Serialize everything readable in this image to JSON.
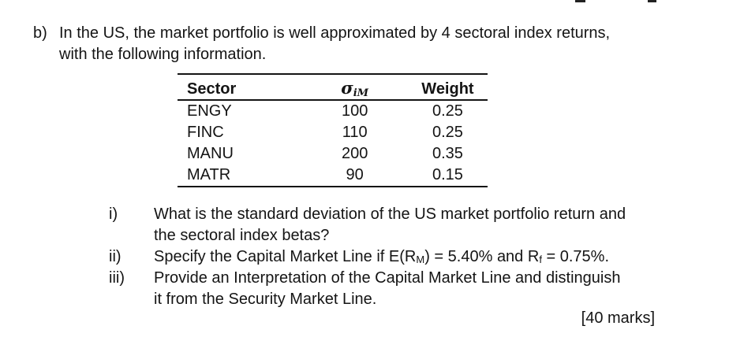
{
  "colors": {
    "background": "#ffffff",
    "text": "#141414",
    "table_rule": "#141414"
  },
  "question_b": {
    "label": "b)",
    "line1": "In the US, the market portfolio is well approximated by 4 sectoral index returns,",
    "line2": "with the following information."
  },
  "table": {
    "headers": {
      "sector": "Sector",
      "sigma_symbol": "σ",
      "sigma_subscript": "iM",
      "weight": "Weight"
    },
    "rows": [
      {
        "sector": "ENGY",
        "sigma_im": "100",
        "weight": "0.25"
      },
      {
        "sector": "FINC",
        "sigma_im": "110",
        "weight": "0.25"
      },
      {
        "sector": "MANU",
        "sigma_im": "200",
        "weight": "0.35"
      },
      {
        "sector": "MATR",
        "sigma_im": "90",
        "weight": "0.15"
      }
    ]
  },
  "subquestions": {
    "i": {
      "label": "i)",
      "line1": "What is the standard deviation of the US market portfolio return and",
      "line2": "the sectoral index betas?"
    },
    "ii": {
      "label": "ii)",
      "text_before_sub_m": "Specify the Capital Market Line if E(R",
      "sub_m": "M",
      "text_between_subs": ") = 5.40% and R",
      "sub_f": "f",
      "text_after_sub_f": " = 0.75%."
    },
    "iii": {
      "label": "iii)",
      "line1": "Provide an Interpretation of the Capital Market Line and distinguish",
      "line2": "it from the Security Market Line."
    }
  },
  "marks_total": "[40 marks]"
}
